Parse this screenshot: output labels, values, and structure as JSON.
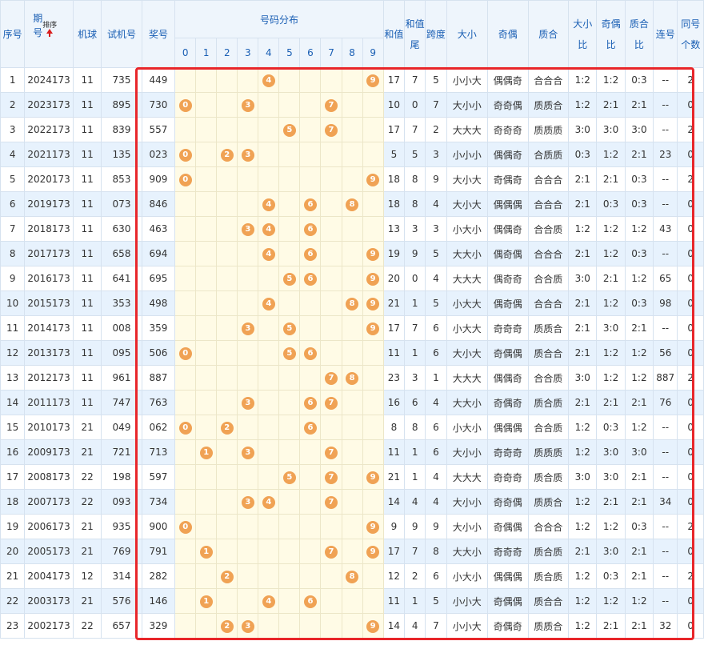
{
  "headers": {
    "index": "序号",
    "issue": "期号",
    "sort": "排序",
    "machine_ball": "机球",
    "test_number": "试机号",
    "award_number": "奖号",
    "distribution": "号码分布",
    "digits": [
      "0",
      "1",
      "2",
      "3",
      "4",
      "5",
      "6",
      "7",
      "8",
      "9"
    ],
    "sum": "和值",
    "sum_tail": "和值尾",
    "span": "跨度",
    "size": "大小",
    "parity": "奇偶",
    "prime": "质合",
    "size_ratio": "大小比",
    "parity_ratio": "奇偶比",
    "prime_ratio": "质合比",
    "consecutive": "连号",
    "same_count": "同号个数"
  },
  "colors": {
    "ball": "#f0a254",
    "highlight_border": "#e8262a",
    "header_text": "#1a5fb4",
    "stripe": "#e7f2fd",
    "distribution_bg": "#fffbe6"
  },
  "rows": [
    {
      "idx": "1",
      "issue": "2024173",
      "ball": "11",
      "test": "735",
      "award": "449",
      "digits": [
        4,
        9
      ],
      "sum": "17",
      "tail": "7",
      "span": "5",
      "size": "小小大",
      "parity": "偶偶奇",
      "prime": "合合合",
      "sr": "1:2",
      "pr": "1:2",
      "qr": "0:3",
      "lian": "--",
      "same": "2"
    },
    {
      "idx": "2",
      "issue": "2023173",
      "ball": "11",
      "test": "895",
      "award": "730",
      "digits": [
        0,
        3,
        7
      ],
      "sum": "10",
      "tail": "0",
      "span": "7",
      "size": "大小小",
      "parity": "奇奇偶",
      "prime": "质质合",
      "sr": "1:2",
      "pr": "2:1",
      "qr": "2:1",
      "lian": "--",
      "same": "0"
    },
    {
      "idx": "3",
      "issue": "2022173",
      "ball": "11",
      "test": "839",
      "award": "557",
      "digits": [
        5,
        7
      ],
      "sum": "17",
      "tail": "7",
      "span": "2",
      "size": "大大大",
      "parity": "奇奇奇",
      "prime": "质质质",
      "sr": "3:0",
      "pr": "3:0",
      "qr": "3:0",
      "lian": "--",
      "same": "2"
    },
    {
      "idx": "4",
      "issue": "2021173",
      "ball": "11",
      "test": "135",
      "award": "023",
      "digits": [
        0,
        2,
        3
      ],
      "sum": "5",
      "tail": "5",
      "span": "3",
      "size": "小小小",
      "parity": "偶偶奇",
      "prime": "合质质",
      "sr": "0:3",
      "pr": "1:2",
      "qr": "2:1",
      "lian": "23",
      "same": "0"
    },
    {
      "idx": "5",
      "issue": "2020173",
      "ball": "11",
      "test": "853",
      "award": "909",
      "digits": [
        0,
        9
      ],
      "sum": "18",
      "tail": "8",
      "span": "9",
      "size": "大小大",
      "parity": "奇偶奇",
      "prime": "合合合",
      "sr": "2:1",
      "pr": "2:1",
      "qr": "0:3",
      "lian": "--",
      "same": "2"
    },
    {
      "idx": "6",
      "issue": "2019173",
      "ball": "11",
      "test": "073",
      "award": "846",
      "digits": [
        4,
        6,
        8
      ],
      "sum": "18",
      "tail": "8",
      "span": "4",
      "size": "大小大",
      "parity": "偶偶偶",
      "prime": "合合合",
      "sr": "2:1",
      "pr": "0:3",
      "qr": "0:3",
      "lian": "--",
      "same": "0"
    },
    {
      "idx": "7",
      "issue": "2018173",
      "ball": "11",
      "test": "630",
      "award": "463",
      "digits": [
        3,
        4,
        6
      ],
      "sum": "13",
      "tail": "3",
      "span": "3",
      "size": "小大小",
      "parity": "偶偶奇",
      "prime": "合合质",
      "sr": "1:2",
      "pr": "1:2",
      "qr": "1:2",
      "lian": "43",
      "same": "0"
    },
    {
      "idx": "8",
      "issue": "2017173",
      "ball": "11",
      "test": "658",
      "award": "694",
      "digits": [
        4,
        6,
        9
      ],
      "sum": "19",
      "tail": "9",
      "span": "5",
      "size": "大大小",
      "parity": "偶奇偶",
      "prime": "合合合",
      "sr": "2:1",
      "pr": "1:2",
      "qr": "0:3",
      "lian": "--",
      "same": "0"
    },
    {
      "idx": "9",
      "issue": "2016173",
      "ball": "11",
      "test": "641",
      "award": "695",
      "digits": [
        5,
        6,
        9
      ],
      "sum": "20",
      "tail": "0",
      "span": "4",
      "size": "大大大",
      "parity": "偶奇奇",
      "prime": "合合质",
      "sr": "3:0",
      "pr": "2:1",
      "qr": "1:2",
      "lian": "65",
      "same": "0"
    },
    {
      "idx": "10",
      "issue": "2015173",
      "ball": "11",
      "test": "353",
      "award": "498",
      "digits": [
        4,
        8,
        9
      ],
      "sum": "21",
      "tail": "1",
      "span": "5",
      "size": "小大大",
      "parity": "偶奇偶",
      "prime": "合合合",
      "sr": "2:1",
      "pr": "1:2",
      "qr": "0:3",
      "lian": "98",
      "same": "0"
    },
    {
      "idx": "11",
      "issue": "2014173",
      "ball": "11",
      "test": "008",
      "award": "359",
      "digits": [
        3,
        5,
        9
      ],
      "sum": "17",
      "tail": "7",
      "span": "6",
      "size": "小大大",
      "parity": "奇奇奇",
      "prime": "质质合",
      "sr": "2:1",
      "pr": "3:0",
      "qr": "2:1",
      "lian": "--",
      "same": "0"
    },
    {
      "idx": "12",
      "issue": "2013173",
      "ball": "11",
      "test": "095",
      "award": "506",
      "digits": [
        0,
        5,
        6
      ],
      "sum": "11",
      "tail": "1",
      "span": "6",
      "size": "大小大",
      "parity": "奇偶偶",
      "prime": "质合合",
      "sr": "2:1",
      "pr": "1:2",
      "qr": "1:2",
      "lian": "56",
      "same": "0"
    },
    {
      "idx": "13",
      "issue": "2012173",
      "ball": "11",
      "test": "961",
      "award": "887",
      "digits": [
        7,
        8
      ],
      "sum": "23",
      "tail": "3",
      "span": "1",
      "size": "大大大",
      "parity": "偶偶奇",
      "prime": "合合质",
      "sr": "3:0",
      "pr": "1:2",
      "qr": "1:2",
      "lian": "887",
      "same": "2"
    },
    {
      "idx": "14",
      "issue": "2011173",
      "ball": "11",
      "test": "747",
      "award": "763",
      "digits": [
        3,
        6,
        7
      ],
      "sum": "16",
      "tail": "6",
      "span": "4",
      "size": "大大小",
      "parity": "奇偶奇",
      "prime": "质合质",
      "sr": "2:1",
      "pr": "2:1",
      "qr": "2:1",
      "lian": "76",
      "same": "0"
    },
    {
      "idx": "15",
      "issue": "2010173",
      "ball": "21",
      "test": "049",
      "award": "062",
      "digits": [
        0,
        2,
        6
      ],
      "sum": "8",
      "tail": "8",
      "span": "6",
      "size": "小大小",
      "parity": "偶偶偶",
      "prime": "合合质",
      "sr": "1:2",
      "pr": "0:3",
      "qr": "1:2",
      "lian": "--",
      "same": "0"
    },
    {
      "idx": "16",
      "issue": "2009173",
      "ball": "21",
      "test": "721",
      "award": "713",
      "digits": [
        1,
        3,
        7
      ],
      "sum": "11",
      "tail": "1",
      "span": "6",
      "size": "大小小",
      "parity": "奇奇奇",
      "prime": "质质质",
      "sr": "1:2",
      "pr": "3:0",
      "qr": "3:0",
      "lian": "--",
      "same": "0"
    },
    {
      "idx": "17",
      "issue": "2008173",
      "ball": "22",
      "test": "198",
      "award": "597",
      "digits": [
        5,
        7,
        9
      ],
      "sum": "21",
      "tail": "1",
      "span": "4",
      "size": "大大大",
      "parity": "奇奇奇",
      "prime": "质合质",
      "sr": "3:0",
      "pr": "3:0",
      "qr": "2:1",
      "lian": "--",
      "same": "0"
    },
    {
      "idx": "18",
      "issue": "2007173",
      "ball": "22",
      "test": "093",
      "award": "734",
      "digits": [
        3,
        4,
        7
      ],
      "sum": "14",
      "tail": "4",
      "span": "4",
      "size": "大小小",
      "parity": "奇奇偶",
      "prime": "质质合",
      "sr": "1:2",
      "pr": "2:1",
      "qr": "2:1",
      "lian": "34",
      "same": "0"
    },
    {
      "idx": "19",
      "issue": "2006173",
      "ball": "21",
      "test": "935",
      "award": "900",
      "digits": [
        0,
        9
      ],
      "sum": "9",
      "tail": "9",
      "span": "9",
      "size": "大小小",
      "parity": "奇偶偶",
      "prime": "合合合",
      "sr": "1:2",
      "pr": "1:2",
      "qr": "0:3",
      "lian": "--",
      "same": "2"
    },
    {
      "idx": "20",
      "issue": "2005173",
      "ball": "21",
      "test": "769",
      "award": "791",
      "digits": [
        1,
        7,
        9
      ],
      "sum": "17",
      "tail": "7",
      "span": "8",
      "size": "大大小",
      "parity": "奇奇奇",
      "prime": "质合质",
      "sr": "2:1",
      "pr": "3:0",
      "qr": "2:1",
      "lian": "--",
      "same": "0"
    },
    {
      "idx": "21",
      "issue": "2004173",
      "ball": "12",
      "test": "314",
      "award": "282",
      "digits": [
        2,
        8
      ],
      "sum": "12",
      "tail": "2",
      "span": "6",
      "size": "小大小",
      "parity": "偶偶偶",
      "prime": "质合质",
      "sr": "1:2",
      "pr": "0:3",
      "qr": "2:1",
      "lian": "--",
      "same": "2"
    },
    {
      "idx": "22",
      "issue": "2003173",
      "ball": "21",
      "test": "576",
      "award": "146",
      "digits": [
        1,
        4,
        6
      ],
      "sum": "11",
      "tail": "1",
      "span": "5",
      "size": "小小大",
      "parity": "奇偶偶",
      "prime": "质合合",
      "sr": "1:2",
      "pr": "1:2",
      "qr": "1:2",
      "lian": "--",
      "same": "0"
    },
    {
      "idx": "23",
      "issue": "2002173",
      "ball": "22",
      "test": "657",
      "award": "329",
      "digits": [
        2,
        3,
        9
      ],
      "sum": "14",
      "tail": "4",
      "span": "7",
      "size": "小小大",
      "parity": "奇偶奇",
      "prime": "质质合",
      "sr": "1:2",
      "pr": "2:1",
      "qr": "2:1",
      "lian": "32",
      "same": "0"
    }
  ]
}
